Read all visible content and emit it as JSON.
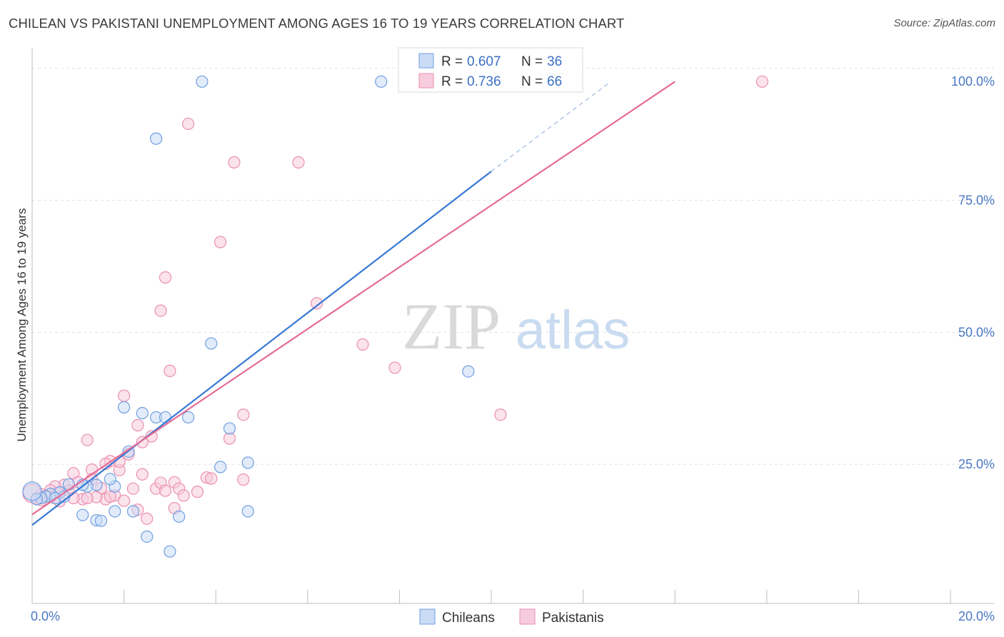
{
  "header": {
    "title": "CHILEAN VS PAKISTANI UNEMPLOYMENT AMONG AGES 16 TO 19 YEARS CORRELATION CHART",
    "source": "Source: ZipAtlas.com"
  },
  "watermark": {
    "zip": "ZIP",
    "atlas": "atlas"
  },
  "legend": {
    "r_label": "R =",
    "n_label": "N =",
    "items": [
      {
        "r": "0.607",
        "n": "36"
      },
      {
        "r": "0.736",
        "n": "66"
      }
    ]
  },
  "chart_data": {
    "type": "scatter",
    "ylabel": "Unemployment Among Ages 16 to 19 years",
    "xlim": [
      0,
      20
    ],
    "ylim": [
      0,
      100
    ],
    "x_tick_labels": {
      "min": "0.0%",
      "max": "20.0%"
    },
    "y_ticks": [
      {
        "value": 25,
        "label": "25.0%"
      },
      {
        "value": 50,
        "label": "50.0%"
      },
      {
        "value": 75,
        "label": "75.0%"
      },
      {
        "value": 100,
        "label": "100.0%"
      }
    ],
    "grid": true,
    "legend_position": "top-center",
    "series": [
      {
        "name": "Chileans",
        "color": "#6f9fe0",
        "fill": "#c9dbf5",
        "line_color": "#3578d4",
        "trend": {
          "x0": 0,
          "y0": 13.5,
          "x1": 10,
          "y1": 80.5,
          "dash_to_x": 12.6,
          "dash_to_y": 97.5
        },
        "points": [
          [
            3.7,
            97.5
          ],
          [
            7.6,
            97.5
          ],
          [
            2.7,
            86.7
          ],
          [
            3.9,
            47.9
          ],
          [
            9.5,
            42.6
          ],
          [
            2.0,
            35.8
          ],
          [
            2.4,
            34.7
          ],
          [
            2.7,
            33.9
          ],
          [
            2.9,
            33.9
          ],
          [
            3.4,
            33.9
          ],
          [
            4.3,
            31.8
          ],
          [
            2.1,
            27.4
          ],
          [
            4.1,
            24.5
          ],
          [
            4.7,
            25.3
          ],
          [
            1.8,
            20.8
          ],
          [
            1.4,
            21.1
          ],
          [
            1.7,
            22.2
          ],
          [
            1.2,
            20.8
          ],
          [
            0.8,
            21.2
          ],
          [
            0.6,
            19.7
          ],
          [
            0.4,
            19.4
          ],
          [
            0.3,
            18.9
          ],
          [
            0.2,
            18.6
          ],
          [
            0.1,
            18.4
          ],
          [
            0.0,
            19.9
          ],
          [
            0.5,
            18.6
          ],
          [
            0.7,
            18.9
          ],
          [
            1.1,
            21.1
          ],
          [
            1.1,
            15.4
          ],
          [
            1.4,
            14.4
          ],
          [
            1.5,
            14.3
          ],
          [
            1.8,
            16.1
          ],
          [
            2.2,
            16.1
          ],
          [
            3.2,
            15.1
          ],
          [
            4.7,
            16.1
          ],
          [
            2.5,
            11.3
          ]
        ],
        "extra_points": [
          [
            3.0,
            8.5
          ]
        ]
      },
      {
        "name": "Pakistanis",
        "color": "#eb8fb0",
        "fill": "#f7ccdc",
        "line_color": "#e56b95",
        "trend": {
          "x0": 0,
          "y0": 15.5,
          "x1": 14,
          "y1": 97.5
        },
        "points": [
          [
            8.3,
            97.5
          ],
          [
            9.4,
            97.5
          ],
          [
            15.9,
            97.5
          ],
          [
            3.4,
            89.5
          ],
          [
            4.4,
            82.2
          ],
          [
            5.8,
            82.2
          ],
          [
            4.1,
            67.1
          ],
          [
            2.9,
            60.4
          ],
          [
            2.8,
            54.1
          ],
          [
            6.2,
            55.5
          ],
          [
            7.2,
            47.7
          ],
          [
            2.0,
            38.0
          ],
          [
            7.9,
            43.3
          ],
          [
            3.0,
            42.7
          ],
          [
            1.9,
            23.9
          ],
          [
            2.3,
            32.4
          ],
          [
            2.6,
            30.3
          ],
          [
            4.6,
            34.4
          ],
          [
            10.2,
            34.4
          ],
          [
            4.3,
            29.9
          ],
          [
            1.2,
            29.6
          ],
          [
            2.4,
            29.2
          ],
          [
            2.1,
            26.9
          ],
          [
            1.7,
            25.6
          ],
          [
            1.6,
            25.1
          ],
          [
            1.9,
            25.5
          ],
          [
            1.3,
            24.0
          ],
          [
            0.9,
            23.3
          ],
          [
            2.4,
            23.1
          ],
          [
            3.1,
            21.6
          ],
          [
            3.8,
            22.5
          ],
          [
            3.9,
            22.3
          ],
          [
            4.6,
            22.1
          ],
          [
            1.3,
            22.2
          ],
          [
            1.0,
            21.6
          ],
          [
            0.7,
            21.1
          ],
          [
            0.5,
            20.8
          ],
          [
            0.4,
            20.1
          ],
          [
            0.2,
            19.3
          ],
          [
            0.0,
            19.5
          ],
          [
            0.3,
            19.0
          ],
          [
            0.6,
            19.6
          ],
          [
            0.8,
            20.0
          ],
          [
            1.5,
            20.5
          ],
          [
            1.6,
            18.4
          ],
          [
            1.8,
            19.1
          ],
          [
            2.2,
            20.4
          ],
          [
            2.7,
            20.4
          ],
          [
            3.2,
            20.4
          ],
          [
            3.6,
            19.8
          ],
          [
            2.8,
            21.5
          ],
          [
            2.9,
            20.0
          ],
          [
            1.4,
            18.8
          ],
          [
            1.1,
            18.4
          ],
          [
            0.9,
            18.6
          ],
          [
            0.4,
            18.8
          ],
          [
            0.1,
            18.5
          ],
          [
            2.3,
            16.4
          ],
          [
            3.1,
            16.7
          ],
          [
            2.5,
            14.7
          ],
          [
            1.7,
            18.9
          ],
          [
            1.2,
            18.6
          ],
          [
            2.0,
            18.1
          ],
          [
            0.6,
            18.0
          ],
          [
            0.2,
            18.2
          ],
          [
            3.3,
            19.1
          ]
        ]
      }
    ]
  },
  "bottom_legend": [
    "Chileans",
    "Pakistanis"
  ]
}
